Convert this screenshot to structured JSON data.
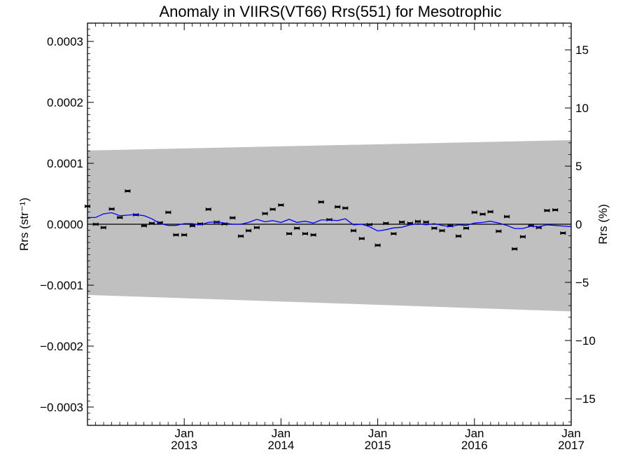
{
  "chart_data": {
    "type": "line",
    "title": "Anomaly in VIIRS(VT66) Rrs(551) for Mesotrophic",
    "ylabel_left": "Rrs (str⁻¹)",
    "ylabel_right": "Rrs (%)",
    "xlim": [
      2012.0,
      2017.0
    ],
    "ylim": [
      -0.00033,
      0.00033
    ],
    "ylim_right": [
      -17.3,
      17.3
    ],
    "grid": false,
    "legend": "none",
    "y_ticks_left": [
      {
        "value": 0.0003,
        "label": "0.0003"
      },
      {
        "value": 0.0002,
        "label": "0.0002"
      },
      {
        "value": 0.0001,
        "label": "0.0001"
      },
      {
        "value": 0.0,
        "label": "0.0000"
      },
      {
        "value": -0.0001,
        "label": "−0.0001"
      },
      {
        "value": -0.0002,
        "label": "−0.0002"
      },
      {
        "value": -0.0003,
        "label": "−0.0003"
      }
    ],
    "y_ticks_right": [
      {
        "value": 15,
        "label": "15"
      },
      {
        "value": 10,
        "label": "10"
      },
      {
        "value": 5,
        "label": "5"
      },
      {
        "value": 0,
        "label": "0"
      },
      {
        "value": -5,
        "label": "−5"
      },
      {
        "value": -10,
        "label": "−10"
      },
      {
        "value": -15,
        "label": "−15"
      }
    ],
    "x_ticks": [
      {
        "value": 2013.0,
        "month": "Jan",
        "year": "2013"
      },
      {
        "value": 2014.0,
        "month": "Jan",
        "year": "2014"
      },
      {
        "value": 2015.0,
        "month": "Jan",
        "year": "2015"
      },
      {
        "value": 2016.0,
        "month": "Jan",
        "year": "2016"
      },
      {
        "value": 2017.0,
        "month": "Jan",
        "year": "2017"
      }
    ],
    "uncertainty_band": {
      "color": "#c0c0c0",
      "x": [
        2012.0,
        2017.0
      ],
      "upper": [
        0.000121,
        0.000138
      ],
      "lower": [
        -0.000116,
        -0.000143
      ]
    },
    "zero_line": {
      "value": 0.0,
      "color": "#000000"
    },
    "series": [
      {
        "style": "markers",
        "color": "#000000",
        "points": [
          {
            "x": 2012.0,
            "y": 2.95e-05
          },
          {
            "x": 2012.085,
            "y": 0.0
          },
          {
            "x": 2012.165,
            "y": -5.5e-06
          },
          {
            "x": 2012.25,
            "y": 2.5e-05
          },
          {
            "x": 2012.335,
            "y": 1.1e-05
          },
          {
            "x": 2012.415,
            "y": 5.45e-05
          },
          {
            "x": 2012.5,
            "y": 1.55e-05
          },
          {
            "x": 2012.585,
            "y": -2.5e-06
          },
          {
            "x": 2012.665,
            "y": 1.5e-06
          },
          {
            "x": 2012.75,
            "y": 2.5e-06
          },
          {
            "x": 2012.835,
            "y": 1.95e-05
          },
          {
            "x": 2012.915,
            "y": -1.75e-05
          },
          {
            "x": 2013.0,
            "y": -1.75e-05
          },
          {
            "x": 2013.085,
            "y": -2.5e-06
          },
          {
            "x": 2013.165,
            "y": 5e-07
          },
          {
            "x": 2013.25,
            "y": 2.45e-05
          },
          {
            "x": 2013.335,
            "y": 3.5e-06
          },
          {
            "x": 2013.415,
            "y": 5e-07
          },
          {
            "x": 2013.5,
            "y": 1.05e-05
          },
          {
            "x": 2013.585,
            "y": -1.95e-05
          },
          {
            "x": 2013.665,
            "y": -1.05e-05
          },
          {
            "x": 2013.75,
            "y": -5.5e-06
          },
          {
            "x": 2013.835,
            "y": 1.75e-05
          },
          {
            "x": 2013.915,
            "y": 2.45e-05
          },
          {
            "x": 2014.0,
            "y": 3.15e-05
          },
          {
            "x": 2014.085,
            "y": -1.55e-05
          },
          {
            "x": 2014.165,
            "y": -6.5e-06
          },
          {
            "x": 2014.25,
            "y": -1.55e-05
          },
          {
            "x": 2014.335,
            "y": -1.75e-05
          },
          {
            "x": 2014.415,
            "y": 3.65e-05
          },
          {
            "x": 2014.5,
            "y": 7.5e-06
          },
          {
            "x": 2014.585,
            "y": 2.85e-05
          },
          {
            "x": 2014.665,
            "y": 2.65e-05
          },
          {
            "x": 2014.75,
            "y": -1.05e-05
          },
          {
            "x": 2014.835,
            "y": -2.35e-05
          },
          {
            "x": 2014.915,
            "y": -5e-07
          },
          {
            "x": 2015.0,
            "y": -3.45e-05
          },
          {
            "x": 2015.085,
            "y": 1.5e-06
          },
          {
            "x": 2015.165,
            "y": -1.55e-05
          },
          {
            "x": 2015.25,
            "y": 3.5e-06
          },
          {
            "x": 2015.335,
            "y": 1.5e-06
          },
          {
            "x": 2015.415,
            "y": 4.5e-06
          },
          {
            "x": 2015.5,
            "y": 3.5e-06
          },
          {
            "x": 2015.585,
            "y": -6.5e-06
          },
          {
            "x": 2015.665,
            "y": -1.05e-05
          },
          {
            "x": 2015.75,
            "y": -2.5e-06
          },
          {
            "x": 2015.835,
            "y": -1.95e-05
          },
          {
            "x": 2015.915,
            "y": -6.5e-06
          },
          {
            "x": 2016.0,
            "y": 1.95e-05
          },
          {
            "x": 2016.085,
            "y": 1.65e-05
          },
          {
            "x": 2016.165,
            "y": 2.05e-05
          },
          {
            "x": 2016.25,
            "y": -1.15e-05
          },
          {
            "x": 2016.335,
            "y": 1.25e-05
          },
          {
            "x": 2016.415,
            "y": -4.05e-05
          },
          {
            "x": 2016.5,
            "y": -2.05e-05
          },
          {
            "x": 2016.585,
            "y": -2.5e-06
          },
          {
            "x": 2016.665,
            "y": -5.5e-06
          },
          {
            "x": 2016.75,
            "y": 2.25e-05
          },
          {
            "x": 2016.835,
            "y": 2.35e-05
          },
          {
            "x": 2016.915,
            "y": -1.45e-05
          }
        ]
      },
      {
        "style": "line",
        "color": "#0000ff",
        "points": [
          {
            "x": 2012.0,
            "y": 1.1e-05
          },
          {
            "x": 2012.085,
            "y": 1.1e-05
          },
          {
            "x": 2012.165,
            "y": 1.7e-05
          },
          {
            "x": 2012.25,
            "y": 1.9e-05
          },
          {
            "x": 2012.335,
            "y": 1.4e-05
          },
          {
            "x": 2012.415,
            "y": 1.5e-05
          },
          {
            "x": 2012.5,
            "y": 1.6e-05
          },
          {
            "x": 2012.585,
            "y": 1.4e-05
          },
          {
            "x": 2012.665,
            "y": 9e-06
          },
          {
            "x": 2012.75,
            "y": 1e-06
          },
          {
            "x": 2012.835,
            "y": -2e-06
          },
          {
            "x": 2012.915,
            "y": -2e-06
          },
          {
            "x": 2013.0,
            "y": 1e-06
          },
          {
            "x": 2013.085,
            "y": 1e-06
          },
          {
            "x": 2013.165,
            "y": -1e-06
          },
          {
            "x": 2013.25,
            "y": 3e-06
          },
          {
            "x": 2013.335,
            "y": 4e-06
          },
          {
            "x": 2013.415,
            "y": 2e-06
          },
          {
            "x": 2013.5,
            "y": 0.0
          },
          {
            "x": 2013.585,
            "y": 0.0
          },
          {
            "x": 2013.665,
            "y": 3e-06
          },
          {
            "x": 2013.75,
            "y": 8e-06
          },
          {
            "x": 2013.835,
            "y": 4e-06
          },
          {
            "x": 2013.915,
            "y": 6e-06
          },
          {
            "x": 2014.0,
            "y": 3e-06
          },
          {
            "x": 2014.085,
            "y": 8e-06
          },
          {
            "x": 2014.165,
            "y": 3e-06
          },
          {
            "x": 2014.25,
            "y": 5e-06
          },
          {
            "x": 2014.335,
            "y": 2e-06
          },
          {
            "x": 2014.415,
            "y": 7e-06
          },
          {
            "x": 2014.5,
            "y": 7e-06
          },
          {
            "x": 2014.585,
            "y": 6e-06
          },
          {
            "x": 2014.665,
            "y": 9e-06
          },
          {
            "x": 2014.75,
            "y": -1e-06
          },
          {
            "x": 2014.835,
            "y": 0.0
          },
          {
            "x": 2014.915,
            "y": -4e-06
          },
          {
            "x": 2015.0,
            "y": -1.1e-05
          },
          {
            "x": 2015.085,
            "y": -9e-06
          },
          {
            "x": 2015.165,
            "y": -6e-06
          },
          {
            "x": 2015.25,
            "y": -5e-06
          },
          {
            "x": 2015.335,
            "y": -1e-06
          },
          {
            "x": 2015.415,
            "y": 1e-06
          },
          {
            "x": 2015.5,
            "y": -1e-06
          },
          {
            "x": 2015.585,
            "y": 1e-06
          },
          {
            "x": 2015.665,
            "y": -2e-06
          },
          {
            "x": 2015.75,
            "y": -4e-06
          },
          {
            "x": 2015.835,
            "y": -1e-06
          },
          {
            "x": 2015.915,
            "y": -2e-06
          },
          {
            "x": 2016.0,
            "y": 2e-06
          },
          {
            "x": 2016.085,
            "y": 3e-06
          },
          {
            "x": 2016.165,
            "y": 5e-06
          },
          {
            "x": 2016.25,
            "y": 2e-06
          },
          {
            "x": 2016.335,
            "y": -2e-06
          },
          {
            "x": 2016.415,
            "y": -7e-06
          },
          {
            "x": 2016.5,
            "y": -7e-06
          },
          {
            "x": 2016.585,
            "y": -3e-06
          },
          {
            "x": 2016.665,
            "y": -4e-06
          },
          {
            "x": 2016.75,
            "y": -1e-06
          },
          {
            "x": 2016.835,
            "y": -2e-06
          },
          {
            "x": 2016.915,
            "y": -3e-06
          },
          {
            "x": 2017.0,
            "y": -4e-06
          }
        ]
      }
    ]
  }
}
